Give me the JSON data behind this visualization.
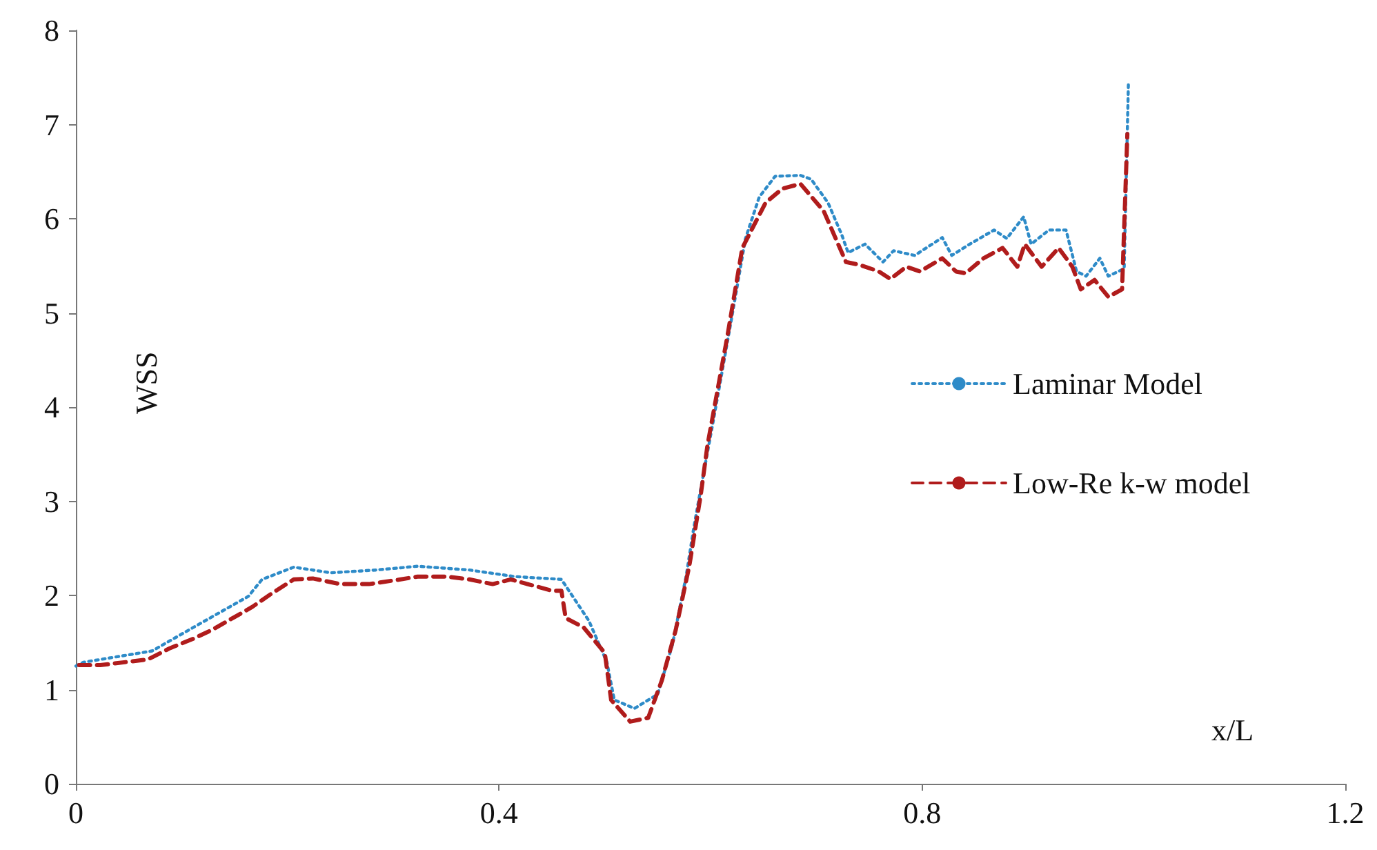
{
  "chart_data": {
    "type": "line",
    "xlabel": "x/L",
    "ylabel": "WSS",
    "xlim": [
      0,
      1.2
    ],
    "xticks": [
      0,
      0.4,
      0.8,
      1.2
    ],
    "ylim": [
      0,
      8
    ],
    "yticks": [
      0,
      1,
      2,
      3,
      4,
      5,
      6,
      7,
      8
    ],
    "grid": false,
    "legend": "right",
    "marker": "none",
    "series": [
      {
        "name": "Laminar Model",
        "color": "#2e8bc8",
        "line_style": "dotted",
        "x": [
          0,
          0.007,
          0.072,
          0.111,
          0.163,
          0.176,
          0.206,
          0.241,
          0.284,
          0.323,
          0.372,
          0.415,
          0.459,
          0.485,
          0.502,
          0.509,
          0.528,
          0.55,
          0.564,
          0.577,
          0.584,
          0.591,
          0.603,
          0.62,
          0.633,
          0.646,
          0.661,
          0.685,
          0.695,
          0.711,
          0.724,
          0.73,
          0.746,
          0.763,
          0.773,
          0.793,
          0.819,
          0.828,
          0.845,
          0.868,
          0.88,
          0.896,
          0.903,
          0.92,
          0.936,
          0.946,
          0.955,
          0.968,
          0.976,
          0.991,
          0.995
        ],
        "values": [
          1.25,
          1.29,
          1.41,
          1.66,
          1.99,
          2.17,
          2.3,
          2.24,
          2.27,
          2.31,
          2.27,
          2.2,
          2.17,
          1.73,
          1.29,
          0.89,
          0.8,
          0.95,
          1.48,
          2.21,
          2.71,
          3.15,
          3.88,
          4.95,
          5.79,
          6.23,
          6.45,
          6.46,
          6.42,
          6.17,
          5.83,
          5.64,
          5.73,
          5.54,
          5.66,
          5.61,
          5.8,
          5.61,
          5.73,
          5.88,
          5.79,
          6.02,
          5.73,
          5.88,
          5.88,
          5.44,
          5.39,
          5.58,
          5.39,
          5.47,
          7.44
        ]
      },
      {
        "name": "Low-Re k-w model",
        "color": "#b01c1c",
        "line_style": "dashed",
        "x": [
          0.003,
          0.023,
          0.068,
          0.089,
          0.111,
          0.128,
          0.15,
          0.167,
          0.185,
          0.206,
          0.224,
          0.25,
          0.277,
          0.307,
          0.323,
          0.35,
          0.372,
          0.394,
          0.411,
          0.45,
          0.459,
          0.463,
          0.48,
          0.5,
          0.506,
          0.524,
          0.541,
          0.554,
          0.567,
          0.58,
          0.591,
          0.597,
          0.616,
          0.63,
          0.652,
          0.668,
          0.685,
          0.707,
          0.728,
          0.741,
          0.759,
          0.77,
          0.785,
          0.798,
          0.819,
          0.832,
          0.841,
          0.858,
          0.876,
          0.89,
          0.897,
          0.913,
          0.929,
          0.942,
          0.95,
          0.963,
          0.976,
          0.989,
          0.994
        ],
        "values": [
          1.26,
          1.26,
          1.32,
          1.44,
          1.54,
          1.63,
          1.77,
          1.88,
          2.02,
          2.17,
          2.18,
          2.12,
          2.12,
          2.17,
          2.2,
          2.2,
          2.17,
          2.12,
          2.17,
          2.05,
          2.05,
          1.76,
          1.66,
          1.39,
          0.89,
          0.66,
          0.7,
          1.1,
          1.63,
          2.32,
          3.09,
          3.59,
          4.76,
          5.69,
          6.17,
          6.32,
          6.37,
          6.08,
          5.54,
          5.51,
          5.44,
          5.36,
          5.49,
          5.44,
          5.58,
          5.44,
          5.42,
          5.58,
          5.69,
          5.49,
          5.73,
          5.49,
          5.69,
          5.49,
          5.25,
          5.35,
          5.17,
          5.25,
          6.9
        ]
      }
    ]
  }
}
